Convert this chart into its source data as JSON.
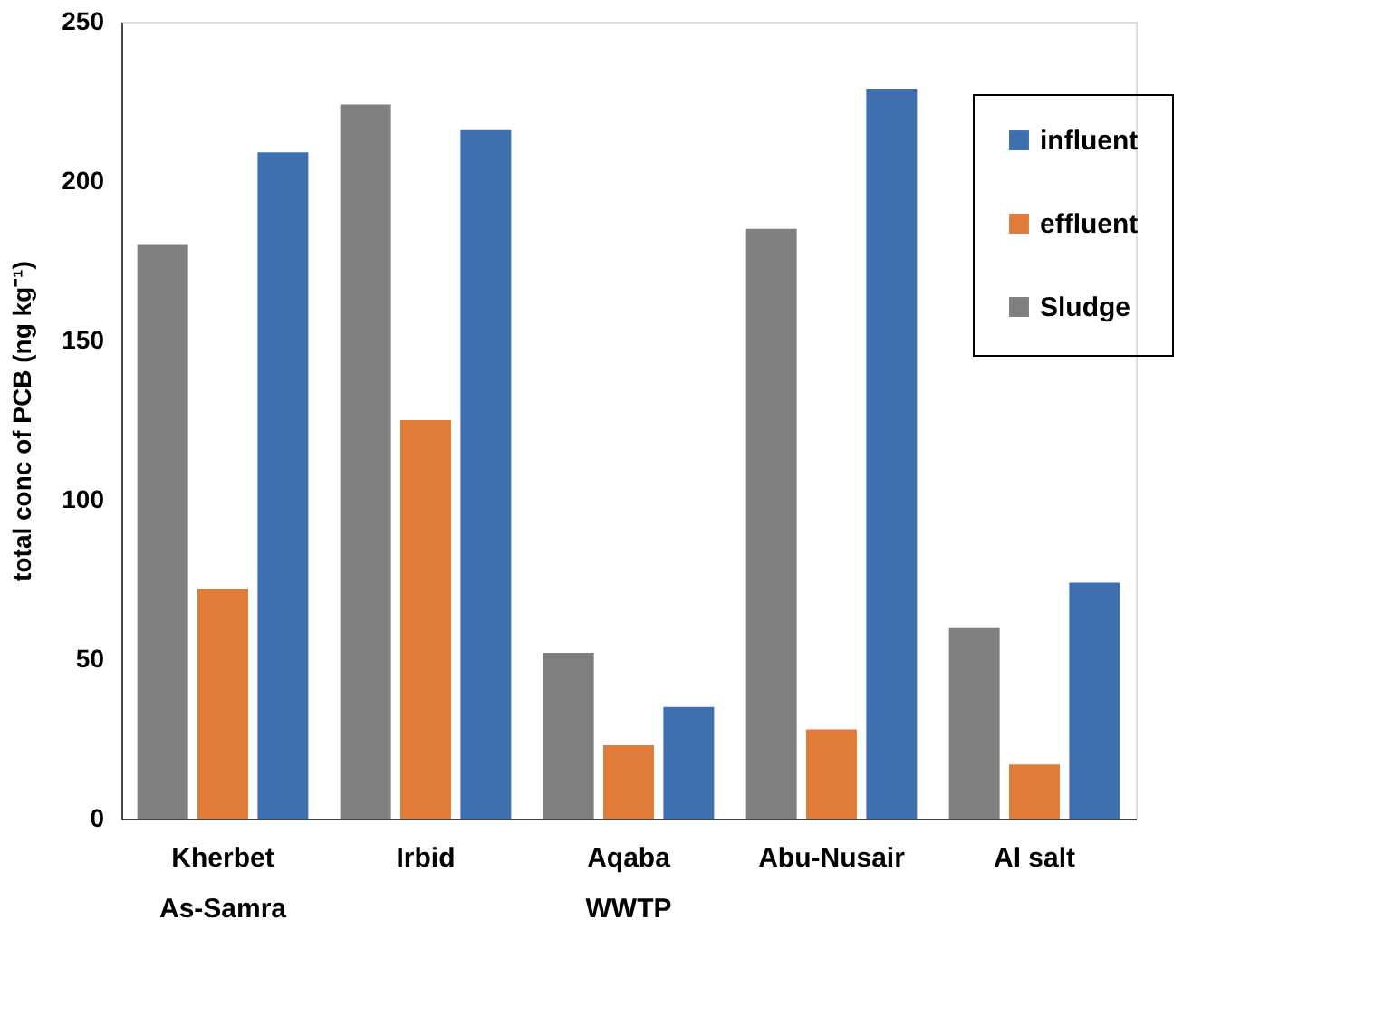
{
  "chart_data": {
    "type": "bar",
    "ylabel": "total conc of PCB (ng kg⁻¹)",
    "categories": [
      "Kherbet As-Samra",
      "Irbid",
      "Aqaba WWTP",
      "Abu-Nusair",
      "Al salt"
    ],
    "series": [
      {
        "name": "Sludge",
        "color": "#7f7f7f",
        "values": [
          180,
          224,
          52,
          185,
          60
        ]
      },
      {
        "name": "effluent",
        "color": "#e07b39",
        "values": [
          72,
          125,
          23,
          28,
          17
        ]
      },
      {
        "name": "influent",
        "color": "#3f6fb0",
        "values": [
          209,
          216,
          35,
          229,
          74
        ]
      }
    ],
    "ylim": [
      0,
      250
    ],
    "yticks": [
      0,
      50,
      100,
      150,
      200,
      250
    ],
    "grid": false,
    "legend": "top right"
  }
}
